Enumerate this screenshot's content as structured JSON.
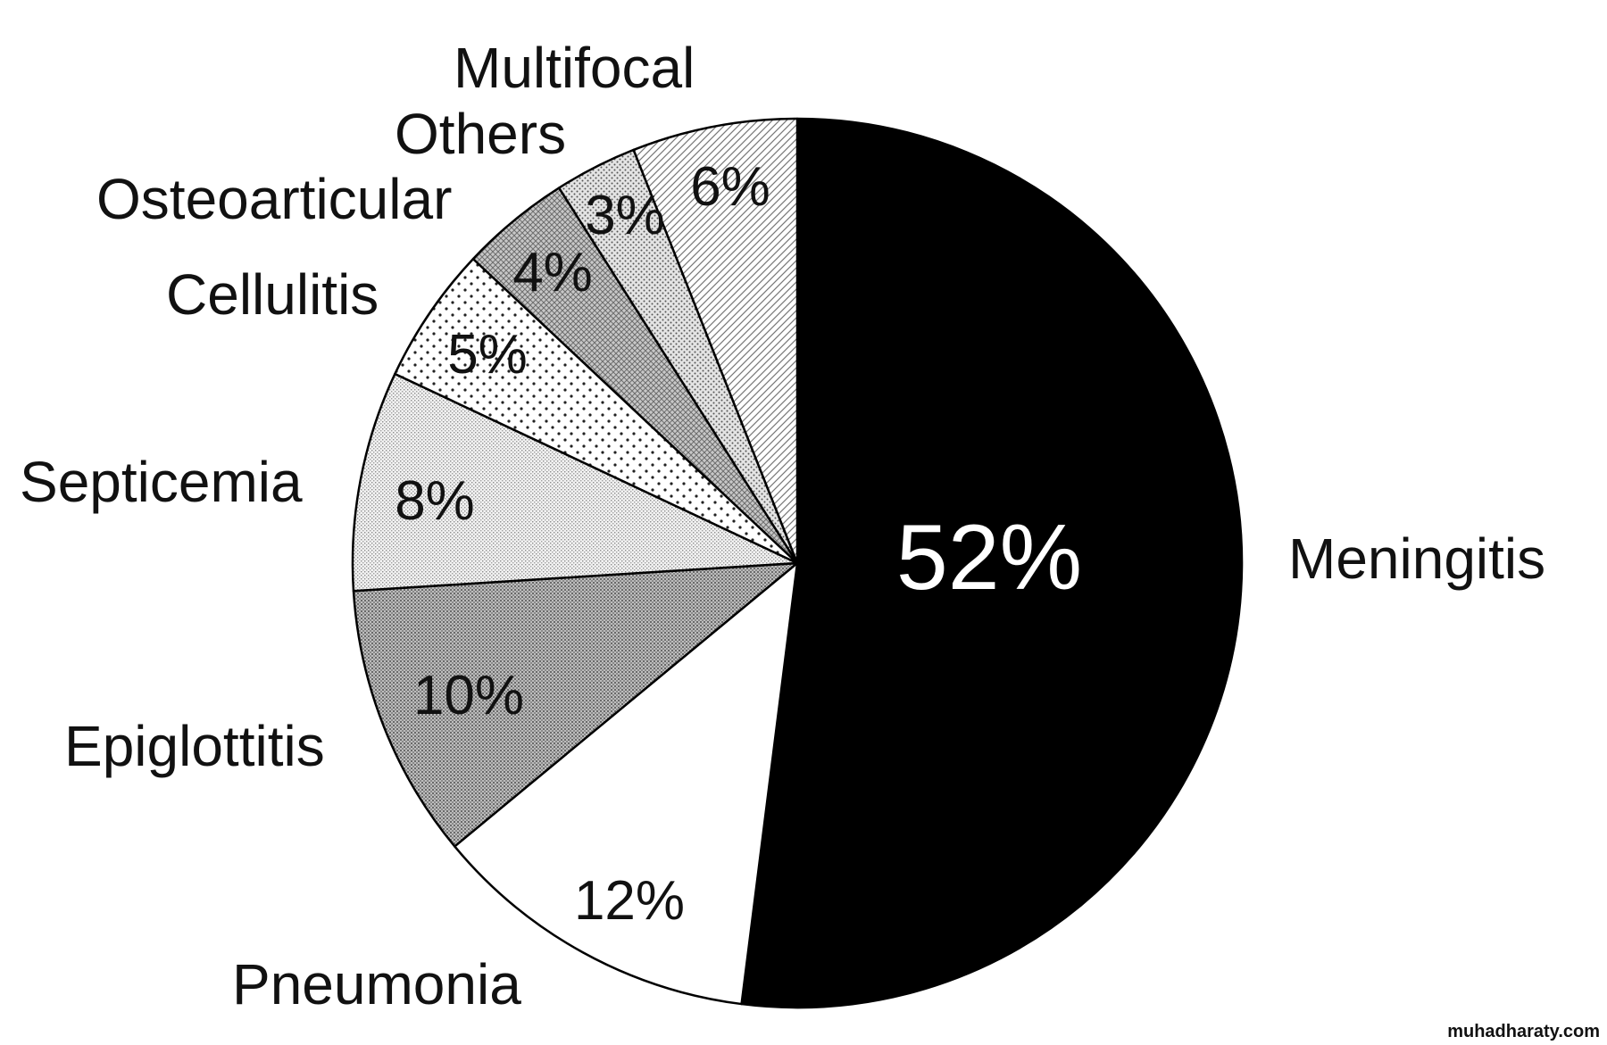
{
  "chart_data": {
    "type": "pie",
    "start": "twelve-o-clock",
    "direction": "clockwise",
    "slices": [
      {
        "label": "Meningitis",
        "value": 52,
        "value_label": "52%",
        "fill": "solid-black"
      },
      {
        "label": "Pneumonia",
        "value": 12,
        "value_label": "12%",
        "fill": "white"
      },
      {
        "label": "Epiglottitis",
        "value": 10,
        "value_label": "10%",
        "fill": "dense-dots"
      },
      {
        "label": "Septicemia",
        "value": 8,
        "value_label": "8%",
        "fill": "fine-dots"
      },
      {
        "label": "Cellulitis",
        "value": 5,
        "value_label": "5%",
        "fill": "sparse-dots"
      },
      {
        "label": "Osteoarticular",
        "value": 4,
        "value_label": "4%",
        "fill": "crosshatch"
      },
      {
        "label": "Others",
        "value": 3,
        "value_label": "3%",
        "fill": "medium-dots"
      },
      {
        "label": "Multifocal",
        "value": 6,
        "value_label": "6%",
        "fill": "diagonal-lines"
      }
    ]
  },
  "watermark": "muhadharaty.com"
}
